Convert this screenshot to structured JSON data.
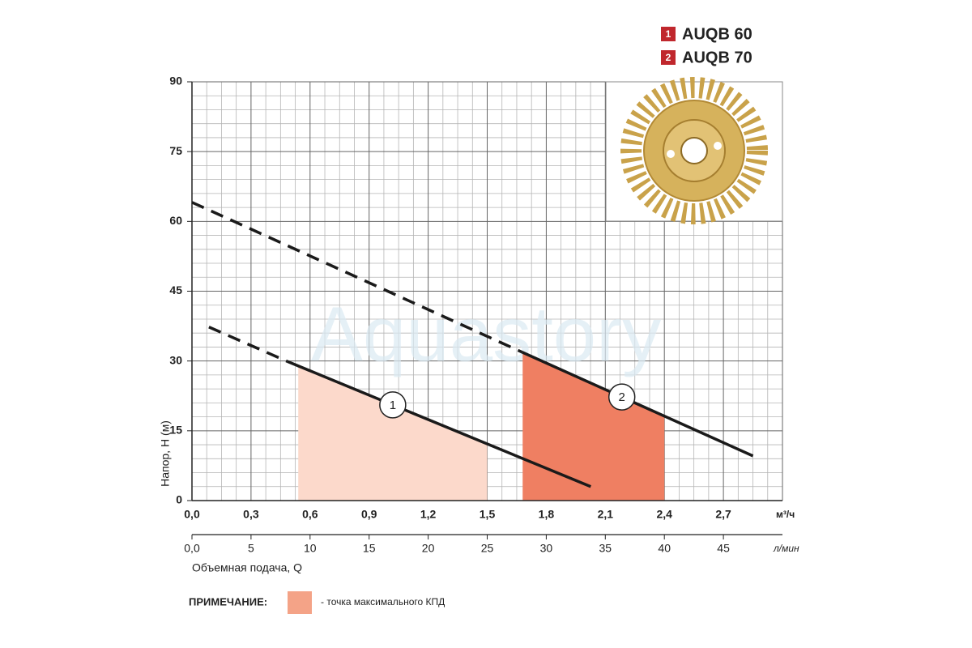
{
  "chart_data": {
    "type": "line",
    "watermark": "Aquastory",
    "x_label": "Объемная подача, Q",
    "y_label": "Напор, H (м)",
    "x_unit": "м³/ч",
    "x2_unit": "л/мин",
    "xlim": [
      0,
      3.0
    ],
    "xticks": [
      {
        "value": 0,
        "label": "0,0"
      },
      {
        "value": 0.3,
        "label": "0,3"
      },
      {
        "value": 0.6,
        "label": "0,6"
      },
      {
        "value": 0.9,
        "label": "0,9"
      },
      {
        "value": 1.2,
        "label": "1,2"
      },
      {
        "value": 1.5,
        "label": "1,5"
      },
      {
        "value": 1.8,
        "label": "1,8"
      },
      {
        "value": 2.1,
        "label": "2,1"
      },
      {
        "value": 2.4,
        "label": "2,4"
      },
      {
        "value": 2.7,
        "label": "2,7"
      }
    ],
    "x2lim": [
      0,
      50
    ],
    "x2ticks": [
      {
        "value": 0,
        "label": "0,0"
      },
      5,
      10,
      15,
      20,
      25,
      30,
      35,
      40,
      45
    ],
    "ylim": [
      0,
      90
    ],
    "yticks": [
      0,
      15,
      30,
      45,
      60,
      75,
      90
    ],
    "grid": true,
    "minor_x_divisions": 4,
    "minor_y_divisions": 5,
    "legend_color": "#c0272d",
    "series": [
      {
        "name": "AUQB 60",
        "label": "1",
        "color": "#1a1a1a",
        "segments": [
          {
            "style": "dashed",
            "x": [
              0.086,
              0.485
            ],
            "values": [
              37.3,
              29.9
            ]
          },
          {
            "style": "solid",
            "x": [
              0.485,
              2.026
            ],
            "values": [
              29.9,
              3.0
            ]
          }
        ],
        "region": {
          "x": [
            0.54,
            1.5
          ],
          "color": "#fcd9cb"
        }
      },
      {
        "name": "AUQB 70",
        "label": "2",
        "color": "#1a1a1a",
        "segments": [
          {
            "style": "dashed",
            "x": [
              0.0,
              1.677
            ],
            "values": [
              64.1,
              31.9
            ]
          },
          {
            "style": "solid",
            "x": [
              1.677,
              2.85
            ],
            "values": [
              31.9,
              9.6
            ]
          }
        ],
        "region": {
          "x": [
            1.68,
            2.4
          ],
          "color": "#ef7f62"
        }
      }
    ],
    "note": {
      "label": "ПРИМЕЧАНИЕ:",
      "text": "- точка максимального КПД",
      "color": "#f4a387"
    }
  }
}
